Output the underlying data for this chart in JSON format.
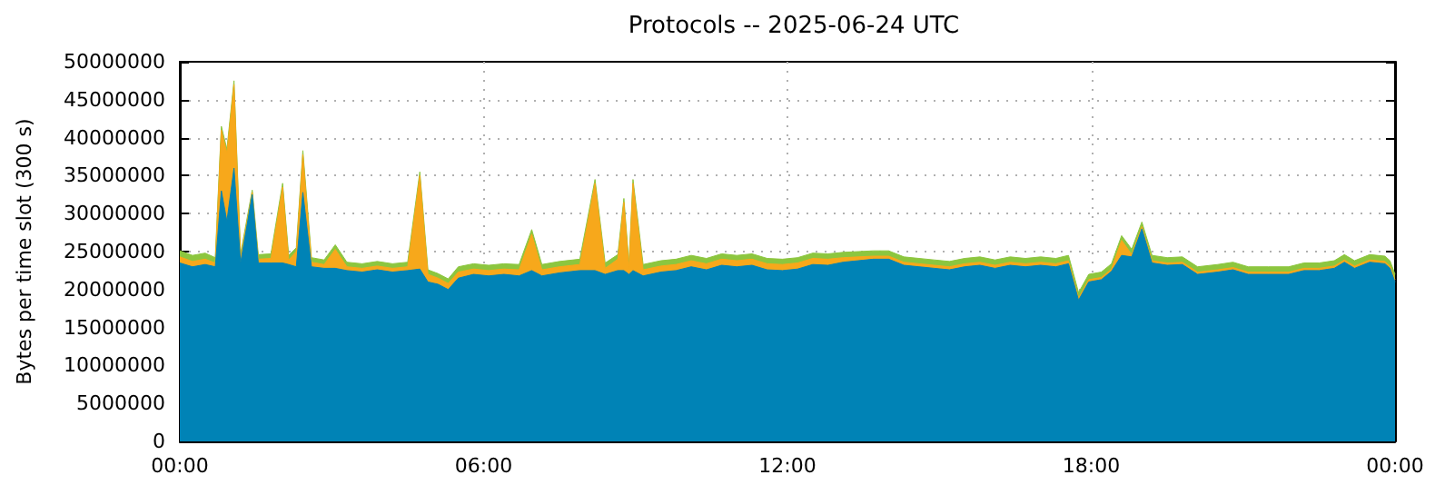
{
  "chart_data": {
    "type": "area",
    "stacked": true,
    "title": "Protocols -- 2025-06-24 UTC",
    "ylabel": "Bytes per time slot (300 s)",
    "x": [
      0,
      0.25,
      0.5,
      0.7,
      0.82,
      0.93,
      1.07,
      1.2,
      1.43,
      1.55,
      1.8,
      2.03,
      2.15,
      2.3,
      2.43,
      2.6,
      2.85,
      3.07,
      3.3,
      3.6,
      3.9,
      4.2,
      4.5,
      4.74,
      4.9,
      5.1,
      5.3,
      5.5,
      5.8,
      6.1,
      6.4,
      6.7,
      6.95,
      7.15,
      7.5,
      7.9,
      8.2,
      8.4,
      8.65,
      8.77,
      8.87,
      8.95,
      9.15,
      9.5,
      9.8,
      10.1,
      10.4,
      10.7,
      11,
      11.3,
      11.6,
      11.9,
      12.2,
      12.5,
      12.8,
      13.1,
      13.4,
      13.7,
      14,
      14.3,
      14.6,
      14.9,
      15.2,
      15.5,
      15.8,
      16.1,
      16.4,
      16.7,
      17,
      17.3,
      17.55,
      17.75,
      17.95,
      18.2,
      18.4,
      18.6,
      18.8,
      19,
      19.2,
      19.5,
      19.8,
      20.1,
      20.5,
      20.8,
      21.1,
      21.5,
      21.9,
      22.2,
      22.5,
      22.8,
      23,
      23.2,
      23.5,
      23.8,
      23.9,
      24
    ],
    "series": [
      {
        "color": "#0083b6",
        "values": [
          23500000,
          23000000,
          23300000,
          23000000,
          33000000,
          29000000,
          36000000,
          23500000,
          32500000,
          23500000,
          23500000,
          23500000,
          23300000,
          23000000,
          32800000,
          23000000,
          22800000,
          22800000,
          22500000,
          22300000,
          22600000,
          22300000,
          22500000,
          22700000,
          21000000,
          20700000,
          20000000,
          21500000,
          22000000,
          21800000,
          22000000,
          21800000,
          22500000,
          21800000,
          22200000,
          22500000,
          22500000,
          22000000,
          22500000,
          22500000,
          22000000,
          22500000,
          21800000,
          22300000,
          22500000,
          23000000,
          22600000,
          23200000,
          23000000,
          23200000,
          22600000,
          22500000,
          22700000,
          23300000,
          23200000,
          23600000,
          23800000,
          24000000,
          24000000,
          23200000,
          23000000,
          22800000,
          22600000,
          23000000,
          23200000,
          22800000,
          23200000,
          23000000,
          23200000,
          23000000,
          23400000,
          18600000,
          21000000,
          21300000,
          22400000,
          24500000,
          24300000,
          28000000,
          23500000,
          23200000,
          23300000,
          22000000,
          22300000,
          22600000,
          22000000,
          22000000,
          22000000,
          22500000,
          22500000,
          22800000,
          23600000,
          22800000,
          23600000,
          23400000,
          22800000,
          21000000
        ]
      },
      {
        "color": "#f7a81b",
        "values": [
          800000,
          700000,
          700000,
          500000,
          8000000,
          9000000,
          11000000,
          600000,
          300000,
          500000,
          600000,
          10000000,
          600000,
          2000000,
          5000000,
          600000,
          500000,
          2500000,
          500000,
          500000,
          500000,
          500000,
          500000,
          12300000,
          1000000,
          800000,
          800000,
          800000,
          700000,
          700000,
          700000,
          800000,
          4800000,
          800000,
          800000,
          800000,
          11500000,
          800000,
          1500000,
          9000000,
          800000,
          11500000,
          800000,
          800000,
          800000,
          800000,
          800000,
          800000,
          800000,
          800000,
          800000,
          800000,
          800000,
          800000,
          800000,
          600000,
          500000,
          400000,
          400000,
          400000,
          400000,
          400000,
          400000,
          400000,
          400000,
          400000,
          400000,
          400000,
          400000,
          400000,
          400000,
          300000,
          300000,
          300000,
          300000,
          2000000,
          300000,
          300000,
          300000,
          300000,
          300000,
          300000,
          300000,
          300000,
          300000,
          300000,
          300000,
          300000,
          300000,
          300000,
          300000,
          300000,
          300000,
          300000,
          300000,
          300000
        ]
      },
      {
        "color": "#8cc63f",
        "values": [
          800000,
          800000,
          800000,
          700000,
          500000,
          500000,
          500000,
          600000,
          300000,
          600000,
          600000,
          500000,
          600000,
          500000,
          500000,
          600000,
          600000,
          600000,
          600000,
          600000,
          600000,
          600000,
          600000,
          500000,
          600000,
          600000,
          600000,
          700000,
          700000,
          700000,
          700000,
          700000,
          600000,
          700000,
          700000,
          700000,
          500000,
          700000,
          600000,
          500000,
          600000,
          500000,
          700000,
          700000,
          700000,
          700000,
          700000,
          700000,
          700000,
          700000,
          700000,
          700000,
          700000,
          700000,
          700000,
          700000,
          700000,
          700000,
          700000,
          700000,
          700000,
          700000,
          700000,
          700000,
          700000,
          700000,
          700000,
          700000,
          700000,
          700000,
          700000,
          700000,
          700000,
          700000,
          700000,
          600000,
          700000,
          600000,
          700000,
          700000,
          700000,
          700000,
          700000,
          700000,
          700000,
          700000,
          700000,
          700000,
          700000,
          700000,
          700000,
          700000,
          700000,
          700000,
          700000,
          700000
        ]
      }
    ],
    "xlim": [
      0,
      24
    ],
    "xticks": [
      {
        "value": 0,
        "label": "00:00"
      },
      {
        "value": 6,
        "label": "06:00"
      },
      {
        "value": 12,
        "label": "12:00"
      },
      {
        "value": 18,
        "label": "18:00"
      },
      {
        "value": 24,
        "label": "00:00"
      }
    ],
    "ylim": [
      0,
      50000000
    ],
    "yticks": [
      0,
      5000000,
      10000000,
      15000000,
      20000000,
      25000000,
      30000000,
      35000000,
      40000000,
      45000000,
      50000000
    ],
    "grid": true,
    "marker": "none"
  }
}
